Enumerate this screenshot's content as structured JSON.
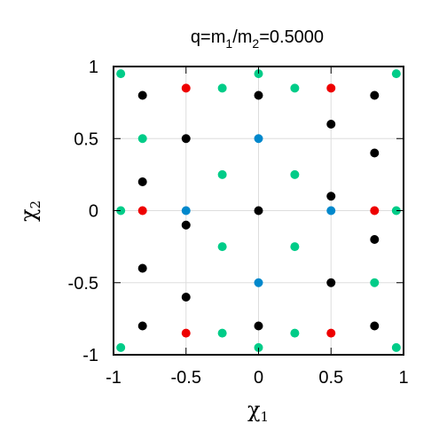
{
  "chart_data": {
    "type": "scatter",
    "title": {
      "prefix": "q=m",
      "sub1": "1",
      "mid": "/m",
      "sub2": "2",
      "suffix": "=0.5000"
    },
    "xlabel": {
      "symbol": "χ",
      "sub": "1"
    },
    "ylabel": {
      "symbol": "χ",
      "sub": "2"
    },
    "xlim": [
      -1,
      1
    ],
    "ylim": [
      -1,
      1
    ],
    "xticks": [
      -1,
      -0.5,
      0,
      0.5,
      1
    ],
    "yticks": [
      -1,
      -0.5,
      0,
      0.5,
      1
    ],
    "xtick_labels": [
      "-1",
      "-0.5",
      "0",
      "0.5",
      "1"
    ],
    "ytick_labels": [
      "-1",
      "-0.5",
      "0",
      "0.5",
      "1"
    ],
    "grid": true,
    "series": [
      {
        "color": "#000000",
        "points": [
          [
            -0.8,
            0.8
          ],
          [
            -0.8,
            0.2
          ],
          [
            -0.8,
            -0.4
          ],
          [
            -0.8,
            -0.8
          ],
          [
            -0.5,
            0.5
          ],
          [
            -0.5,
            -0.1
          ],
          [
            -0.5,
            -0.6
          ],
          [
            0.0,
            0.8
          ],
          [
            0.0,
            0.0
          ],
          [
            0.0,
            -0.8
          ],
          [
            0.5,
            0.6
          ],
          [
            0.5,
            0.1
          ],
          [
            0.5,
            -0.5
          ],
          [
            0.8,
            0.8
          ],
          [
            0.8,
            0.4
          ],
          [
            0.8,
            -0.2
          ],
          [
            0.8,
            -0.8
          ]
        ]
      },
      {
        "color": "#00cc88",
        "points": [
          [
            -0.95,
            0.95
          ],
          [
            0.0,
            0.95
          ],
          [
            0.95,
            0.95
          ],
          [
            -0.25,
            0.85
          ],
          [
            0.25,
            0.85
          ],
          [
            -0.8,
            0.5
          ],
          [
            -0.25,
            0.25
          ],
          [
            0.25,
            0.25
          ],
          [
            -0.95,
            0.0
          ],
          [
            0.95,
            0.0
          ],
          [
            -0.25,
            -0.25
          ],
          [
            0.25,
            -0.25
          ],
          [
            0.8,
            -0.5
          ],
          [
            -0.25,
            -0.85
          ],
          [
            0.25,
            -0.85
          ],
          [
            -0.95,
            -0.95
          ],
          [
            0.0,
            -0.95
          ],
          [
            0.95,
            -0.95
          ]
        ]
      },
      {
        "color": "#ee0000",
        "points": [
          [
            -0.5,
            0.85
          ],
          [
            0.5,
            0.85
          ],
          [
            -0.8,
            0.0
          ],
          [
            0.8,
            0.0
          ],
          [
            -0.5,
            -0.85
          ],
          [
            0.5,
            -0.85
          ]
        ]
      },
      {
        "color": "#0088cc",
        "points": [
          [
            0.0,
            0.5
          ],
          [
            -0.5,
            0.0
          ],
          [
            0.5,
            0.0
          ],
          [
            0.0,
            -0.5
          ]
        ]
      }
    ]
  }
}
